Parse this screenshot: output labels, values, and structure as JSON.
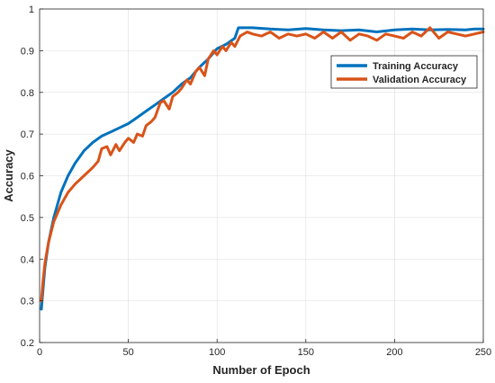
{
  "chart_data": {
    "type": "line",
    "xlabel": "Number of Epoch",
    "ylabel": "Accuracy",
    "xlim": [
      0,
      250
    ],
    "ylim": [
      0.2,
      1
    ],
    "xticks": [
      0,
      50,
      100,
      150,
      200,
      250
    ],
    "yticks": [
      0.2,
      0.3,
      0.4,
      0.5,
      0.6,
      0.7,
      0.8,
      0.9,
      1
    ],
    "ytick_labels": [
      "0.2",
      "0.3",
      "0.4",
      "0.5",
      "0.6",
      "0.7",
      "0.8",
      "0.9",
      "1"
    ],
    "grid": true,
    "legend_position": "top-right",
    "series": [
      {
        "name": "Training Accuracy",
        "color": "#0072BD",
        "x": [
          1,
          2,
          3,
          5,
          8,
          12,
          16,
          20,
          25,
          30,
          35,
          40,
          45,
          50,
          55,
          60,
          65,
          70,
          75,
          80,
          85,
          90,
          95,
          100,
          105,
          110,
          112,
          120,
          130,
          140,
          150,
          160,
          170,
          180,
          190,
          200,
          210,
          220,
          230,
          240,
          245,
          250
        ],
        "y": [
          0.28,
          0.33,
          0.38,
          0.44,
          0.5,
          0.56,
          0.6,
          0.63,
          0.66,
          0.68,
          0.695,
          0.705,
          0.715,
          0.725,
          0.74,
          0.755,
          0.77,
          0.785,
          0.8,
          0.82,
          0.835,
          0.86,
          0.88,
          0.905,
          0.915,
          0.93,
          0.955,
          0.955,
          0.952,
          0.95,
          0.953,
          0.95,
          0.948,
          0.95,
          0.945,
          0.95,
          0.952,
          0.95,
          0.951,
          0.95,
          0.952,
          0.952
        ]
      },
      {
        "name": "Validation Accuracy",
        "color": "#D95319",
        "x": [
          1,
          2,
          3,
          5,
          8,
          12,
          16,
          20,
          25,
          30,
          33,
          35,
          38,
          40,
          43,
          45,
          48,
          50,
          53,
          55,
          58,
          60,
          63,
          65,
          68,
          70,
          73,
          75,
          78,
          80,
          83,
          85,
          88,
          90,
          93,
          95,
          98,
          100,
          103,
          105,
          108,
          110,
          113,
          117,
          120,
          125,
          130,
          135,
          140,
          145,
          150,
          155,
          160,
          165,
          170,
          175,
          180,
          185,
          190,
          195,
          200,
          205,
          210,
          215,
          220,
          225,
          230,
          235,
          240,
          245,
          250
        ],
        "y": [
          0.3,
          0.35,
          0.39,
          0.44,
          0.49,
          0.53,
          0.56,
          0.58,
          0.6,
          0.62,
          0.635,
          0.665,
          0.67,
          0.65,
          0.675,
          0.66,
          0.68,
          0.69,
          0.68,
          0.7,
          0.695,
          0.72,
          0.73,
          0.74,
          0.775,
          0.78,
          0.76,
          0.79,
          0.8,
          0.81,
          0.83,
          0.82,
          0.85,
          0.86,
          0.84,
          0.88,
          0.9,
          0.89,
          0.91,
          0.9,
          0.92,
          0.91,
          0.935,
          0.945,
          0.94,
          0.935,
          0.945,
          0.93,
          0.94,
          0.935,
          0.94,
          0.93,
          0.945,
          0.93,
          0.945,
          0.925,
          0.94,
          0.935,
          0.925,
          0.94,
          0.935,
          0.93,
          0.945,
          0.935,
          0.955,
          0.93,
          0.945,
          0.94,
          0.935,
          0.94,
          0.945
        ]
      }
    ]
  }
}
